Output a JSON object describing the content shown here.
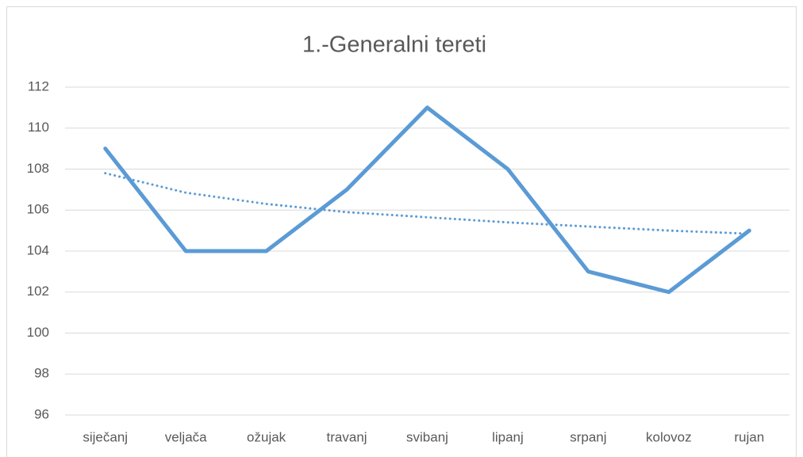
{
  "chart_data": {
    "type": "line",
    "title": "1.-Generalni tereti",
    "categories": [
      "siječanj",
      "veljača",
      "ožujak",
      "travanj",
      "svibanj",
      "lipanj",
      "srpanj",
      "kolovoz",
      "rujan"
    ],
    "values": [
      109,
      104,
      104,
      107,
      111,
      108,
      103,
      102,
      105
    ],
    "color": "#5b9bd5",
    "trendline": {
      "values": [
        107.8,
        106.85,
        106.3,
        105.9,
        105.65,
        105.4,
        105.2,
        105.0,
        104.85
      ],
      "color": "#5b9bd5",
      "style": "dotted"
    },
    "ylim": [
      96,
      112
    ],
    "yticks": [
      96,
      98,
      100,
      102,
      104,
      106,
      108,
      110,
      112
    ],
    "grid": true
  }
}
